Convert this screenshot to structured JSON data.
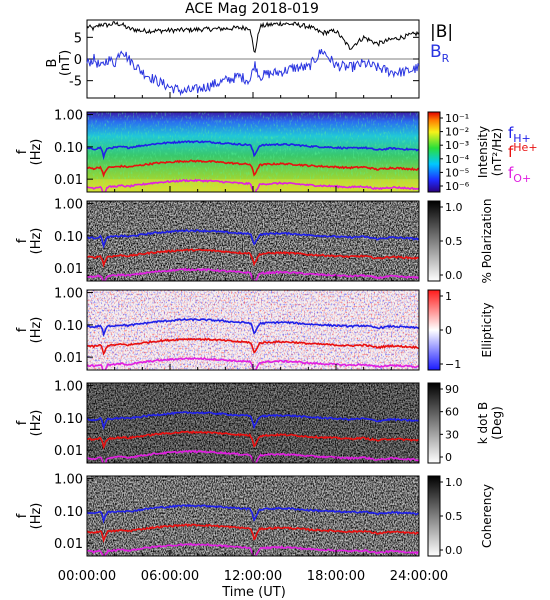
{
  "chart_data": {
    "type": "line",
    "title": "ACE Mag 2018-019",
    "xlabel": "Time (UT)",
    "x_ticks": [
      "00:00:00",
      "06:00:00",
      "12:00:00",
      "18:00:00",
      "24:00:00"
    ],
    "x_range_hours": [
      0,
      24
    ],
    "top_panel": {
      "ylabel": "B",
      "yunit": "(nT)",
      "ylim": [
        -9,
        9
      ],
      "y_ticks": [
        "5",
        "0",
        "-5"
      ],
      "legend": [
        {
          "label": "|B|",
          "color": "#000000"
        },
        {
          "label": "B",
          "sub": "R",
          "color": "#2a35e0"
        }
      ],
      "series": [
        {
          "name": "|B|",
          "color": "#000000",
          "x": [
            0,
            0.5,
            1,
            1.5,
            2,
            2.5,
            3,
            4,
            5,
            6,
            7,
            8,
            9,
            10,
            11,
            11.8,
            12.1,
            12.5,
            13,
            14,
            15,
            16,
            17,
            18,
            19,
            20,
            21,
            22,
            23,
            24
          ],
          "y": [
            7.5,
            7.0,
            8.0,
            7.8,
            8.2,
            8.0,
            7.0,
            6.5,
            6.5,
            6.6,
            6.7,
            6.8,
            6.9,
            7.0,
            7.2,
            7.2,
            1.0,
            7.5,
            7.8,
            8.2,
            8.0,
            7.5,
            6.0,
            6.5,
            2.5,
            5.0,
            3.5,
            4.5,
            5.2,
            6.0
          ]
        },
        {
          "name": "B",
          "color": "#2a35e0",
          "x": [
            0,
            0.5,
            1,
            1.5,
            2,
            2.5,
            3,
            4,
            5,
            6,
            7,
            8,
            9,
            10,
            11,
            11.8,
            12.1,
            12.5,
            13,
            14,
            15,
            16,
            17,
            18,
            19,
            20,
            21,
            22,
            23,
            24
          ],
          "y": [
            -1.0,
            0.0,
            -2.0,
            0.0,
            -1.0,
            2.5,
            0.0,
            -3.0,
            -5.0,
            -6.5,
            -7.5,
            -7.0,
            -6.0,
            -5.0,
            -4.0,
            -5.0,
            -1.0,
            -4.0,
            -3.5,
            -3.0,
            -2.0,
            -2.0,
            2.0,
            -1.5,
            -2.0,
            -1.0,
            -2.0,
            -3.0,
            -3.0,
            -2.0
          ]
        }
      ]
    },
    "spectral_panels": [
      {
        "ylabel": "f",
        "yunit": "(Hz)",
        "cbar_label": "Intensity",
        "cbar_unit": "(nT²/Hz)",
        "cbar_ticks": [
          "10⁻¹",
          "10⁻²",
          "10⁻³",
          "10⁻⁴",
          "10⁻⁵",
          "10⁻⁶"
        ],
        "cbar_scale": "jet"
      },
      {
        "ylabel": "f",
        "yunit": "(Hz)",
        "cbar_label": "% Polarization",
        "cbar_unit": "",
        "cbar_ticks": [
          "1.0",
          "0.5",
          "0.0"
        ],
        "cbar_scale": "gray"
      },
      {
        "ylabel": "f",
        "yunit": "(Hz)",
        "cbar_label": "Ellipticity",
        "cbar_unit": "",
        "cbar_ticks": [
          "1",
          "0",
          "−1"
        ],
        "cbar_scale": "bwr"
      },
      {
        "ylabel": "f",
        "yunit": "(Hz)",
        "cbar_label": "k dot B",
        "cbar_unit": "(Deg)",
        "cbar_ticks": [
          "90",
          "60",
          "30",
          "0"
        ],
        "cbar_scale": "gray"
      },
      {
        "ylabel": "f",
        "yunit": "(Hz)",
        "cbar_label": "Coherency",
        "cbar_unit": "",
        "cbar_ticks": [
          "1.0",
          "0.5",
          "0.0"
        ],
        "cbar_scale": "gray"
      }
    ],
    "f_ticks": [
      "1.00",
      "0.10",
      "0.01"
    ],
    "f_range_hz": [
      0.004,
      1.2
    ],
    "ion_gyrofrequencies": {
      "legend": [
        {
          "label": "f",
          "sub": "H+",
          "color": "#2020e8"
        },
        {
          "label": "f",
          "sub": "He+",
          "color": "#e81010"
        },
        {
          "label": "f",
          "sub": "O+",
          "color": "#e020e0"
        }
      ],
      "f_H_plus_hz": {
        "x": [
          0,
          0.5,
          1,
          1.2,
          1.5,
          2,
          2.5,
          3,
          4,
          5,
          6,
          7,
          8,
          9,
          10,
          11,
          11.8,
          12.1,
          12.5,
          13,
          14,
          15,
          16,
          17,
          18,
          19,
          20,
          21,
          22,
          23,
          24
        ],
        "y": [
          0.09,
          0.085,
          0.095,
          0.05,
          0.092,
          0.095,
          0.1,
          0.095,
          0.11,
          0.125,
          0.135,
          0.145,
          0.145,
          0.14,
          0.13,
          0.12,
          0.115,
          0.05,
          0.11,
          0.115,
          0.12,
          0.115,
          0.105,
          0.1,
          0.095,
          0.09,
          0.095,
          0.08,
          0.09,
          0.085,
          0.08
        ]
      }
    }
  }
}
